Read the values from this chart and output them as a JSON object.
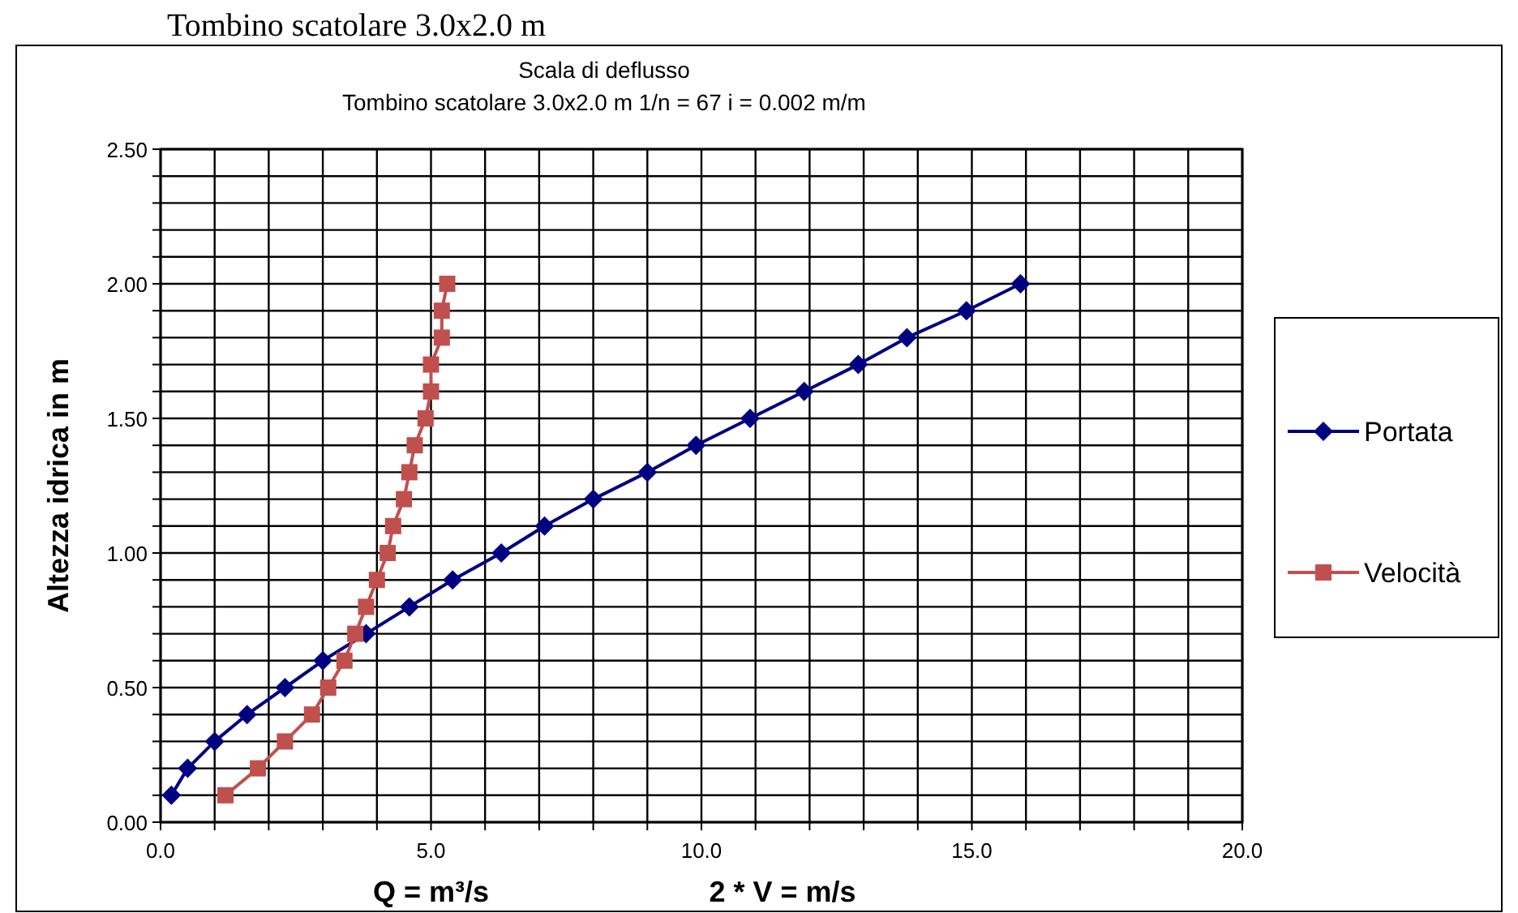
{
  "chart_data": {
    "type": "line",
    "title": "Scala di deflusso",
    "subtitle": "Tombino scatolare 3.0x2.0 m   1/n = 67  i = 0.002 m/m",
    "xlabel": "Q = m³/s",
    "ylabel": "Altezza idrica in m",
    "annotations": [
      "Tombino scatolare 3.0x2.0 m",
      "2 * V = m/s"
    ],
    "series": [
      {
        "name": "Portata",
        "color": "#000080",
        "marker": "diamond",
        "x": [
          0.2,
          0.5,
          1.0,
          1.6,
          2.3,
          3.0,
          3.8,
          4.6,
          5.4,
          6.3,
          7.1,
          8.0,
          9.0,
          9.9,
          10.9,
          11.9,
          12.9,
          13.8,
          14.9,
          15.9
        ],
        "values": [
          0.1,
          0.2,
          0.3,
          0.4,
          0.5,
          0.6,
          0.7,
          0.8,
          0.9,
          1.0,
          1.1,
          1.2,
          1.3,
          1.4,
          1.5,
          1.6,
          1.7,
          1.8,
          1.9,
          2.0
        ]
      },
      {
        "name": "Velocità",
        "color": "#c0504d",
        "marker": "square",
        "x": [
          1.2,
          1.8,
          2.3,
          2.8,
          3.1,
          3.4,
          3.6,
          3.8,
          4.0,
          4.2,
          4.3,
          4.5,
          4.6,
          4.7,
          4.9,
          5.0,
          5.0,
          5.2,
          5.2,
          5.3
        ],
        "values": [
          0.1,
          0.2,
          0.3,
          0.4,
          0.5,
          0.6,
          0.7,
          0.8,
          0.9,
          1.0,
          1.1,
          1.2,
          1.3,
          1.4,
          1.5,
          1.6,
          1.7,
          1.8,
          1.9,
          2.0
        ]
      }
    ],
    "xlim": [
      0,
      20
    ],
    "xticks": [
      {
        "value": 0,
        "label": "0.0"
      },
      {
        "value": 1,
        "label": null
      },
      {
        "value": 2,
        "label": null
      },
      {
        "value": 3,
        "label": null
      },
      {
        "value": 4,
        "label": null
      },
      {
        "value": 5,
        "label": "5.0"
      },
      {
        "value": 6,
        "label": null
      },
      {
        "value": 7,
        "label": null
      },
      {
        "value": 8,
        "label": null
      },
      {
        "value": 9,
        "label": null
      },
      {
        "value": 10,
        "label": "10.0"
      },
      {
        "value": 11,
        "label": null
      },
      {
        "value": 12,
        "label": null
      },
      {
        "value": 13,
        "label": null
      },
      {
        "value": 14,
        "label": null
      },
      {
        "value": 15,
        "label": "15.0"
      },
      {
        "value": 16,
        "label": null
      },
      {
        "value": 17,
        "label": null
      },
      {
        "value": 18,
        "label": null
      },
      {
        "value": 19,
        "label": null
      },
      {
        "value": 20,
        "label": "20.0"
      }
    ],
    "ylim": [
      0,
      2.5
    ],
    "yticks": [
      {
        "value": 0,
        "label": "0.00"
      },
      {
        "value": 0.1,
        "label": null
      },
      {
        "value": 0.2,
        "label": null
      },
      {
        "value": 0.3,
        "label": null
      },
      {
        "value": 0.4,
        "label": null
      },
      {
        "value": 0.5,
        "label": "0.50"
      },
      {
        "value": 0.6,
        "label": null
      },
      {
        "value": 0.7,
        "label": null
      },
      {
        "value": 0.8,
        "label": null
      },
      {
        "value": 0.9,
        "label": null
      },
      {
        "value": 1.0,
        "label": "1.00"
      },
      {
        "value": 1.1,
        "label": null
      },
      {
        "value": 1.2,
        "label": null
      },
      {
        "value": 1.3,
        "label": null
      },
      {
        "value": 1.4,
        "label": null
      },
      {
        "value": 1.5,
        "label": "1.50"
      },
      {
        "value": 1.6,
        "label": null
      },
      {
        "value": 1.7,
        "label": null
      },
      {
        "value": 1.8,
        "label": null
      },
      {
        "value": 1.9,
        "label": null
      },
      {
        "value": 2.0,
        "label": "2.00"
      },
      {
        "value": 2.1,
        "label": null
      },
      {
        "value": 2.2,
        "label": null
      },
      {
        "value": 2.3,
        "label": null
      },
      {
        "value": 2.4,
        "label": null
      },
      {
        "value": 2.5,
        "label": "2.50"
      }
    ],
    "grid": true,
    "legend": "right"
  }
}
